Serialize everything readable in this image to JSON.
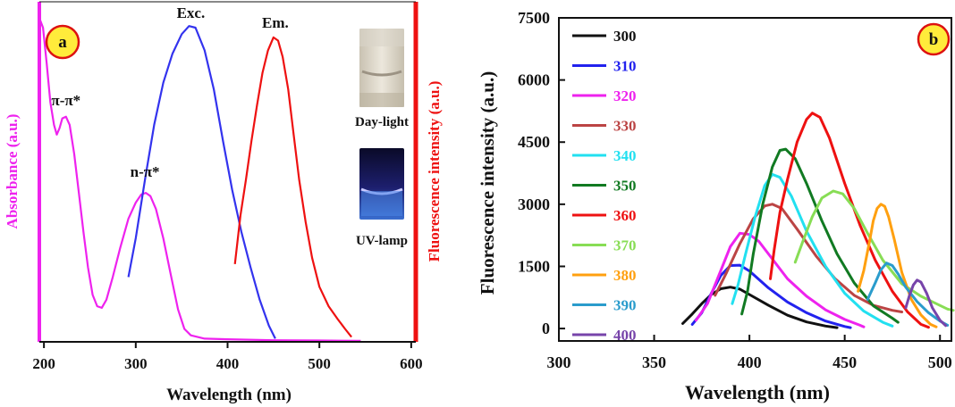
{
  "chart_data": [
    {
      "panel_label": "a",
      "type": "line",
      "xlabel": "Wavelength (nm)",
      "ylabel_left": "Absorbance (a.u.)",
      "ylabel_right": "Fluorescence intensity (a.u.)",
      "xlim": [
        195,
        605
      ],
      "x_ticks": [
        200,
        300,
        400,
        500,
        600
      ],
      "ylim_rel": [
        0,
        1.05
      ],
      "colors": {
        "absorbance": "#ee22ee",
        "excitation": "#3333ee",
        "emission": "#ee1111",
        "left_axis": "#ee22ee",
        "right_axis": "#ee1111"
      },
      "series": [
        {
          "key": "absorbance",
          "values": [
            [
              195,
              1.0
            ],
            [
              199,
              0.97
            ],
            [
              203,
              0.86
            ],
            [
              207,
              0.74
            ],
            [
              211,
              0.67
            ],
            [
              214,
              0.64
            ],
            [
              217,
              0.66
            ],
            [
              220,
              0.69
            ],
            [
              224,
              0.695
            ],
            [
              228,
              0.67
            ],
            [
              233,
              0.58
            ],
            [
              238,
              0.46
            ],
            [
              243,
              0.34
            ],
            [
              248,
              0.23
            ],
            [
              253,
              0.145
            ],
            [
              258,
              0.11
            ],
            [
              263,
              0.105
            ],
            [
              268,
              0.13
            ],
            [
              275,
              0.2
            ],
            [
              283,
              0.29
            ],
            [
              292,
              0.38
            ],
            [
              300,
              0.43
            ],
            [
              306,
              0.455
            ],
            [
              311,
              0.46
            ],
            [
              316,
              0.45
            ],
            [
              322,
              0.41
            ],
            [
              330,
              0.32
            ],
            [
              338,
              0.21
            ],
            [
              346,
              0.1
            ],
            [
              353,
              0.04
            ],
            [
              360,
              0.02
            ],
            [
              375,
              0.01
            ],
            [
              400,
              0.008
            ],
            [
              450,
              0.005
            ],
            [
              500,
              0.004
            ],
            [
              545,
              0.003
            ]
          ]
        },
        {
          "key": "excitation",
          "values": [
            [
              292,
              0.2
            ],
            [
              300,
              0.32
            ],
            [
              310,
              0.5
            ],
            [
              320,
              0.67
            ],
            [
              330,
              0.8
            ],
            [
              340,
              0.89
            ],
            [
              350,
              0.95
            ],
            [
              358,
              0.975
            ],
            [
              365,
              0.97
            ],
            [
              375,
              0.9
            ],
            [
              385,
              0.78
            ],
            [
              395,
              0.62
            ],
            [
              405,
              0.47
            ],
            [
              415,
              0.34
            ],
            [
              425,
              0.23
            ],
            [
              435,
              0.13
            ],
            [
              445,
              0.05
            ],
            [
              452,
              0.01
            ]
          ]
        },
        {
          "key": "emission",
          "values": [
            [
              408,
              0.24
            ],
            [
              414,
              0.39
            ],
            [
              420,
              0.5
            ],
            [
              426,
              0.62
            ],
            [
              432,
              0.73
            ],
            [
              438,
              0.83
            ],
            [
              444,
              0.9
            ],
            [
              450,
              0.94
            ],
            [
              455,
              0.93
            ],
            [
              460,
              0.88
            ],
            [
              466,
              0.78
            ],
            [
              472,
              0.64
            ],
            [
              478,
              0.5
            ],
            [
              485,
              0.37
            ],
            [
              492,
              0.26
            ],
            [
              500,
              0.17
            ],
            [
              510,
              0.11
            ],
            [
              520,
              0.07
            ],
            [
              528,
              0.04
            ],
            [
              535,
              0.015
            ]
          ]
        }
      ],
      "annotations": [
        {
          "text": "π-π*",
          "x": 224,
          "y": 0.73
        },
        {
          "text": "n-π*",
          "x": 310,
          "y": 0.51
        },
        {
          "text": "Exc.",
          "x": 360,
          "y": 1.0
        },
        {
          "text": "Em.",
          "x": 452,
          "y": 0.97
        }
      ],
      "photos": [
        {
          "caption": "Day-light",
          "scene": "day"
        },
        {
          "caption": "UV-lamp",
          "scene": "uv"
        }
      ]
    },
    {
      "panel_label": "b",
      "type": "line",
      "xlabel": "Wavelength (nm)",
      "ylabel": "Fluorescence intensity (a.u.)",
      "xlim": [
        300,
        506
      ],
      "ylim": [
        -300,
        7500
      ],
      "x_ticks": [
        300,
        350,
        400,
        450,
        500
      ],
      "y_ticks": [
        0,
        1500,
        3000,
        4500,
        6000,
        7500
      ],
      "legend_position": "top-left",
      "series": [
        {
          "name": "300",
          "color": "#111111",
          "values": [
            [
              365,
              120
            ],
            [
              370,
              350
            ],
            [
              375,
              600
            ],
            [
              380,
              820
            ],
            [
              385,
              960
            ],
            [
              390,
              1000
            ],
            [
              395,
              950
            ],
            [
              400,
              820
            ],
            [
              410,
              560
            ],
            [
              420,
              320
            ],
            [
              430,
              160
            ],
            [
              440,
              60
            ],
            [
              446,
              20
            ]
          ]
        },
        {
          "name": "310",
          "color": "#2222ee",
          "values": [
            [
              370,
              100
            ],
            [
              375,
              380
            ],
            [
              380,
              850
            ],
            [
              385,
              1280
            ],
            [
              390,
              1520
            ],
            [
              395,
              1530
            ],
            [
              400,
              1390
            ],
            [
              410,
              980
            ],
            [
              420,
              640
            ],
            [
              430,
              380
            ],
            [
              440,
              180
            ],
            [
              450,
              50
            ],
            [
              453,
              20
            ]
          ]
        },
        {
          "name": "320",
          "color": "#ee22ee",
          "values": [
            [
              372,
              200
            ],
            [
              378,
              600
            ],
            [
              385,
              1400
            ],
            [
              390,
              1980
            ],
            [
              395,
              2300
            ],
            [
              400,
              2270
            ],
            [
              405,
              2100
            ],
            [
              410,
              1800
            ],
            [
              420,
              1200
            ],
            [
              430,
              780
            ],
            [
              440,
              450
            ],
            [
              450,
              220
            ],
            [
              458,
              80
            ],
            [
              460,
              40
            ]
          ]
        },
        {
          "name": "330",
          "color": "#bb4444",
          "values": [
            [
              382,
              800
            ],
            [
              388,
              1350
            ],
            [
              395,
              2050
            ],
            [
              402,
              2650
            ],
            [
              408,
              2960
            ],
            [
              412,
              3000
            ],
            [
              417,
              2900
            ],
            [
              425,
              2400
            ],
            [
              435,
              1750
            ],
            [
              445,
              1200
            ],
            [
              455,
              800
            ],
            [
              465,
              560
            ],
            [
              475,
              440
            ],
            [
              480,
              400
            ]
          ]
        },
        {
          "name": "340",
          "color": "#22e0f0",
          "values": [
            [
              391,
              600
            ],
            [
              394,
              1050
            ],
            [
              398,
              1800
            ],
            [
              403,
              2700
            ],
            [
              408,
              3450
            ],
            [
              412,
              3720
            ],
            [
              416,
              3650
            ],
            [
              422,
              3200
            ],
            [
              430,
              2350
            ],
            [
              440,
              1500
            ],
            [
              450,
              850
            ],
            [
              460,
              420
            ],
            [
              470,
              150
            ],
            [
              475,
              60
            ]
          ]
        },
        {
          "name": "350",
          "color": "#117a22",
          "values": [
            [
              396,
              350
            ],
            [
              399,
              900
            ],
            [
              402,
              1800
            ],
            [
              407,
              3000
            ],
            [
              412,
              3900
            ],
            [
              416,
              4300
            ],
            [
              419,
              4330
            ],
            [
              424,
              4100
            ],
            [
              430,
              3500
            ],
            [
              438,
              2600
            ],
            [
              446,
              1800
            ],
            [
              455,
              1100
            ],
            [
              465,
              550
            ],
            [
              475,
              250
            ],
            [
              478,
              150
            ]
          ]
        },
        {
          "name": "360",
          "color": "#ee1111",
          "values": [
            [
              411,
              1200
            ],
            [
              413,
              1900
            ],
            [
              416,
              2800
            ],
            [
              420,
              3600
            ],
            [
              425,
              4500
            ],
            [
              430,
              5050
            ],
            [
              433,
              5200
            ],
            [
              437,
              5100
            ],
            [
              442,
              4600
            ],
            [
              450,
              3500
            ],
            [
              458,
              2500
            ],
            [
              466,
              1650
            ],
            [
              475,
              900
            ],
            [
              483,
              400
            ],
            [
              490,
              100
            ],
            [
              494,
              30
            ]
          ]
        },
        {
          "name": "370",
          "color": "#88dd55",
          "values": [
            [
              424,
              1600
            ],
            [
              428,
              2100
            ],
            [
              433,
              2700
            ],
            [
              438,
              3150
            ],
            [
              444,
              3320
            ],
            [
              449,
              3250
            ],
            [
              455,
              2900
            ],
            [
              462,
              2300
            ],
            [
              470,
              1650
            ],
            [
              480,
              1080
            ],
            [
              490,
              780
            ],
            [
              498,
              600
            ],
            [
              504,
              470
            ],
            [
              507,
              440
            ]
          ]
        },
        {
          "name": "380",
          "color": "#ffa010",
          "values": [
            [
              457,
              900
            ],
            [
              460,
              1400
            ],
            [
              463,
              2100
            ],
            [
              465,
              2600
            ],
            [
              467,
              2900
            ],
            [
              469,
              3000
            ],
            [
              471,
              2950
            ],
            [
              473,
              2700
            ],
            [
              476,
              2150
            ],
            [
              480,
              1350
            ],
            [
              485,
              700
            ],
            [
              490,
              330
            ],
            [
              495,
              100
            ],
            [
              498,
              40
            ]
          ]
        },
        {
          "name": "390",
          "color": "#2a9ccc",
          "values": [
            [
              462,
              700
            ],
            [
              466,
              1100
            ],
            [
              469,
              1420
            ],
            [
              472,
              1580
            ],
            [
              475,
              1520
            ],
            [
              478,
              1320
            ],
            [
              482,
              1000
            ],
            [
              488,
              650
            ],
            [
              494,
              380
            ],
            [
              500,
              180
            ],
            [
              504,
              80
            ]
          ]
        },
        {
          "name": "400",
          "color": "#7744aa",
          "values": [
            [
              482,
              500
            ],
            [
              484,
              800
            ],
            [
              486,
              1050
            ],
            [
              488,
              1170
            ],
            [
              490,
              1120
            ],
            [
              493,
              850
            ],
            [
              496,
              500
            ],
            [
              500,
              200
            ],
            [
              503,
              70
            ]
          ]
        }
      ]
    }
  ]
}
